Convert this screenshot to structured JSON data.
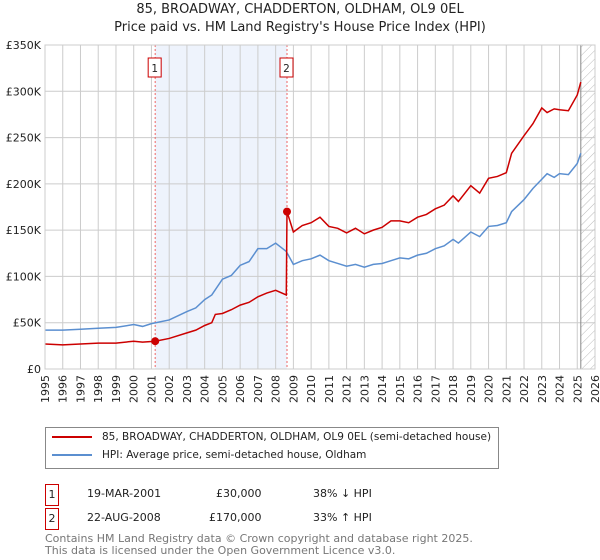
{
  "title": "85, BROADWAY, CHADDERTON, OLDHAM, OL9 0EL",
  "subtitle": "Price paid vs. HM Land Registry's House Price Index (HPI)",
  "colors": {
    "property": "#cc0000",
    "hpi": "#5b8fd0",
    "shade": "#eef3fc"
  },
  "legend": {
    "property": "85, BROADWAY, CHADDERTON, OLDHAM, OL9 0EL (semi-detached house)",
    "hpi": "HPI: Average price, semi-detached house, Oldham"
  },
  "sales": [
    {
      "n": "1",
      "date": "19-MAR-2001",
      "price": "£30,000",
      "rel": "38% ↓ HPI"
    },
    {
      "n": "2",
      "date": "22-AUG-2008",
      "price": "£170,000",
      "rel": "33% ↑ HPI"
    }
  ],
  "footer": {
    "line1": "Contains HM Land Registry data © Crown copyright and database right 2025.",
    "line2": "This data is licensed under the Open Government Licence v3.0."
  },
  "chart_data": {
    "type": "line",
    "xlim": [
      1995,
      2026
    ],
    "ylim": [
      0,
      350000
    ],
    "xticks": [
      "1995",
      "1996",
      "1997",
      "1998",
      "1999",
      "2000",
      "2001",
      "2002",
      "2003",
      "2004",
      "2005",
      "2006",
      "2007",
      "2008",
      "2009",
      "2010",
      "2011",
      "2012",
      "2013",
      "2014",
      "2015",
      "2016",
      "2017",
      "2018",
      "2019",
      "2020",
      "2021",
      "2022",
      "2023",
      "2024",
      "2025",
      "2026"
    ],
    "yticks": [
      {
        "v": 0,
        "l": "£0"
      },
      {
        "v": 50000,
        "l": "£50K"
      },
      {
        "v": 100000,
        "l": "£100K"
      },
      {
        "v": 150000,
        "l": "£150K"
      },
      {
        "v": 200000,
        "l": "£200K"
      },
      {
        "v": 250000,
        "l": "£250K"
      },
      {
        "v": 300000,
        "l": "£300K"
      },
      {
        "v": 350000,
        "l": "£350K"
      }
    ],
    "sale_markers": [
      {
        "label": "1",
        "x": 2001.21,
        "y": 30000
      },
      {
        "label": "2",
        "x": 2008.64,
        "y": 170000
      }
    ],
    "forecast_from": 2025.2,
    "series": [
      {
        "name": "hpi",
        "x": [
          1995,
          1996,
          1997,
          1998,
          1999,
          2000,
          2000.5,
          2001,
          2002,
          2003,
          2003.5,
          2004,
          2004.4,
          2005,
          2005.5,
          2006,
          2006.5,
          2007,
          2007.5,
          2008,
          2008.6,
          2009,
          2009.5,
          2010,
          2010.5,
          2011,
          2011.5,
          2012,
          2012.5,
          2013,
          2013.5,
          2014,
          2014.5,
          2015,
          2015.5,
          2016,
          2016.5,
          2017,
          2017.5,
          2018,
          2018.3,
          2019,
          2019.5,
          2020,
          2020.5,
          2021,
          2021.3,
          2022,
          2022.5,
          2023,
          2023.3,
          2023.7,
          2024,
          2024.5,
          2025,
          2025.2
        ],
        "y": [
          42000,
          42000,
          43000,
          44000,
          45000,
          48000,
          46000,
          49000,
          53000,
          62000,
          66000,
          75000,
          80000,
          97000,
          101000,
          112000,
          116000,
          130000,
          130000,
          136000,
          127000,
          113000,
          117000,
          119000,
          123000,
          117000,
          114000,
          111000,
          113000,
          110000,
          113000,
          114000,
          117000,
          120000,
          119000,
          123000,
          125000,
          130000,
          133000,
          140000,
          136000,
          148000,
          143000,
          154000,
          155000,
          158000,
          170000,
          183000,
          195000,
          205000,
          211000,
          207000,
          211000,
          210000,
          222000,
          233000
        ]
      },
      {
        "name": "property",
        "x": [
          1995,
          1996,
          1997,
          1998,
          1999,
          2000,
          2000.5,
          2001.21,
          2002,
          2003,
          2003.5,
          2004,
          2004.4,
          2004.6,
          2005,
          2005.5,
          2006,
          2006.5,
          2007,
          2007.5,
          2008,
          2008.6,
          2008.64,
          2009,
          2009.5,
          2010,
          2010.5,
          2011,
          2011.5,
          2012,
          2012.5,
          2013,
          2013.5,
          2014,
          2014.5,
          2015,
          2015.5,
          2016,
          2016.5,
          2017,
          2017.5,
          2018,
          2018.3,
          2019,
          2019.5,
          2020,
          2020.5,
          2021,
          2021.3,
          2022,
          2022.5,
          2023,
          2023.3,
          2023.7,
          2024,
          2024.5,
          2025,
          2025.2
        ],
        "y": [
          27000,
          26000,
          27000,
          28000,
          28000,
          30000,
          29000,
          30000,
          33000,
          39000,
          42000,
          47000,
          50000,
          59000,
          60000,
          64000,
          69000,
          72000,
          78000,
          82000,
          85000,
          80000,
          170000,
          148000,
          155000,
          158000,
          164000,
          154000,
          152000,
          147000,
          152000,
          146000,
          150000,
          153000,
          160000,
          160000,
          158000,
          164000,
          167000,
          173000,
          177000,
          187000,
          181000,
          198000,
          190000,
          206000,
          208000,
          212000,
          233000,
          252000,
          265000,
          282000,
          277000,
          281000,
          280000,
          279000,
          296000,
          310000
        ]
      }
    ]
  }
}
